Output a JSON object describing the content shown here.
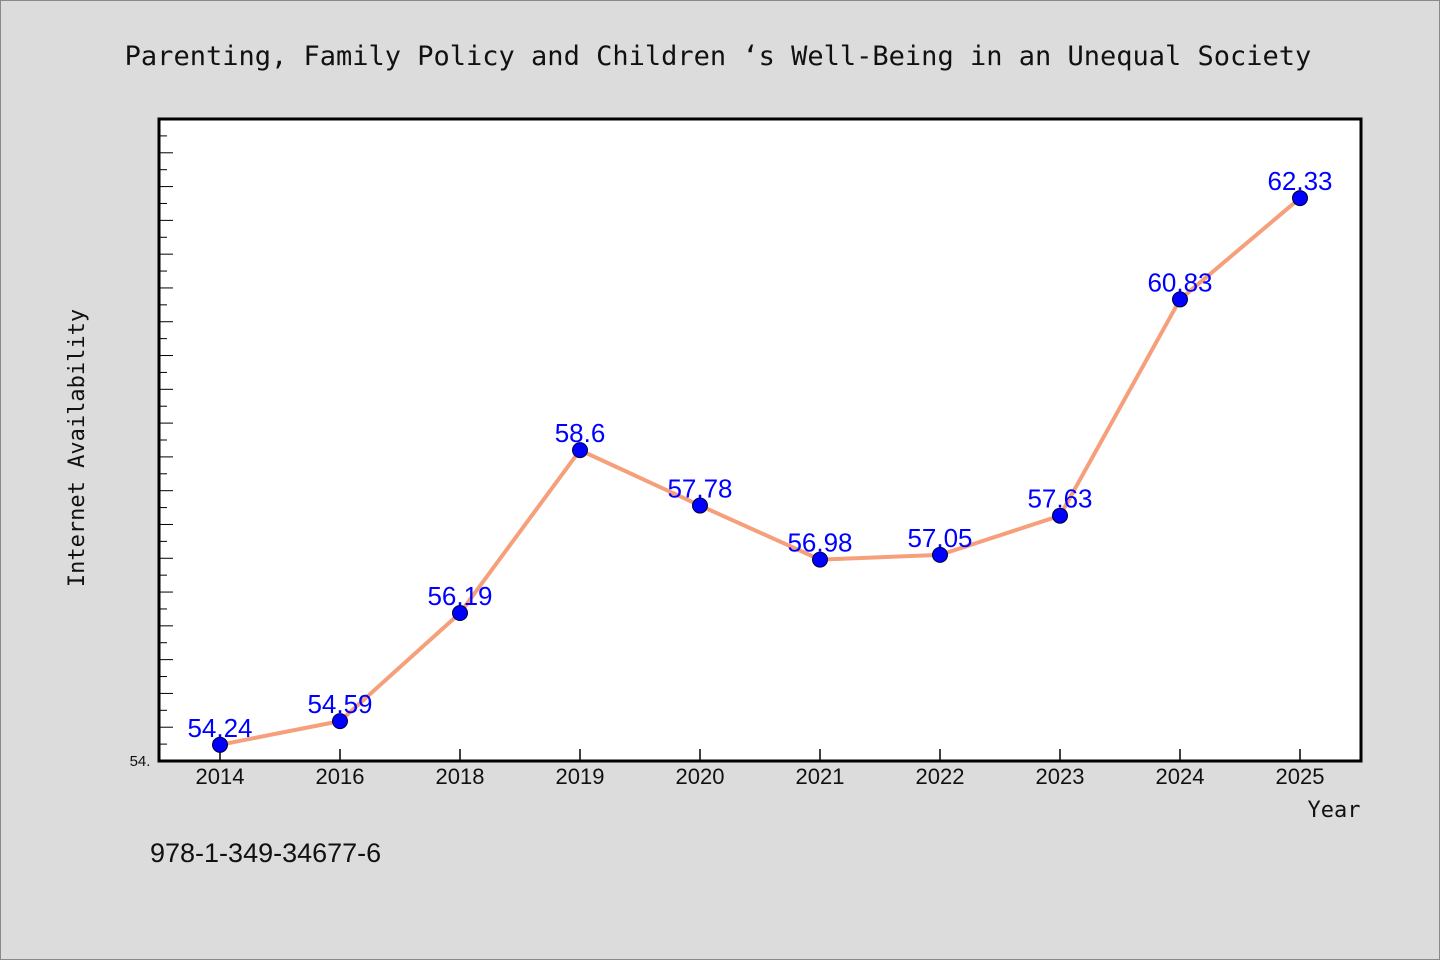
{
  "chart_data": {
    "type": "line",
    "title": "Parenting, Family Policy and Children ‘s Well-Being in an Unequal Society",
    "xlabel": "Year",
    "ylabel": "Internet Availability",
    "categories": [
      "2014",
      "2016",
      "2018",
      "2019",
      "2020",
      "2021",
      "2022",
      "2023",
      "2024",
      "2025"
    ],
    "values": [
      54.24,
      54.59,
      56.19,
      58.6,
      57.78,
      56.98,
      57.05,
      57.63,
      60.83,
      62.33
    ],
    "data_labels": [
      "54.24",
      "54.59",
      "56.19",
      "58.6",
      "57.78",
      "56.98",
      "57.05",
      "57.63",
      "60.83",
      "62.33"
    ],
    "ylim": [
      54.0,
      63.5
    ],
    "y_min_label": "54.",
    "line_color": "#f5a07a",
    "marker_color": "#0000ff",
    "label_color": "#0000ff",
    "plot_background": "#ffffff",
    "figure_background": "#dcdcdc",
    "grid": false,
    "legend": "none"
  },
  "footer": {
    "isbn": "978-1-349-34677-6"
  }
}
